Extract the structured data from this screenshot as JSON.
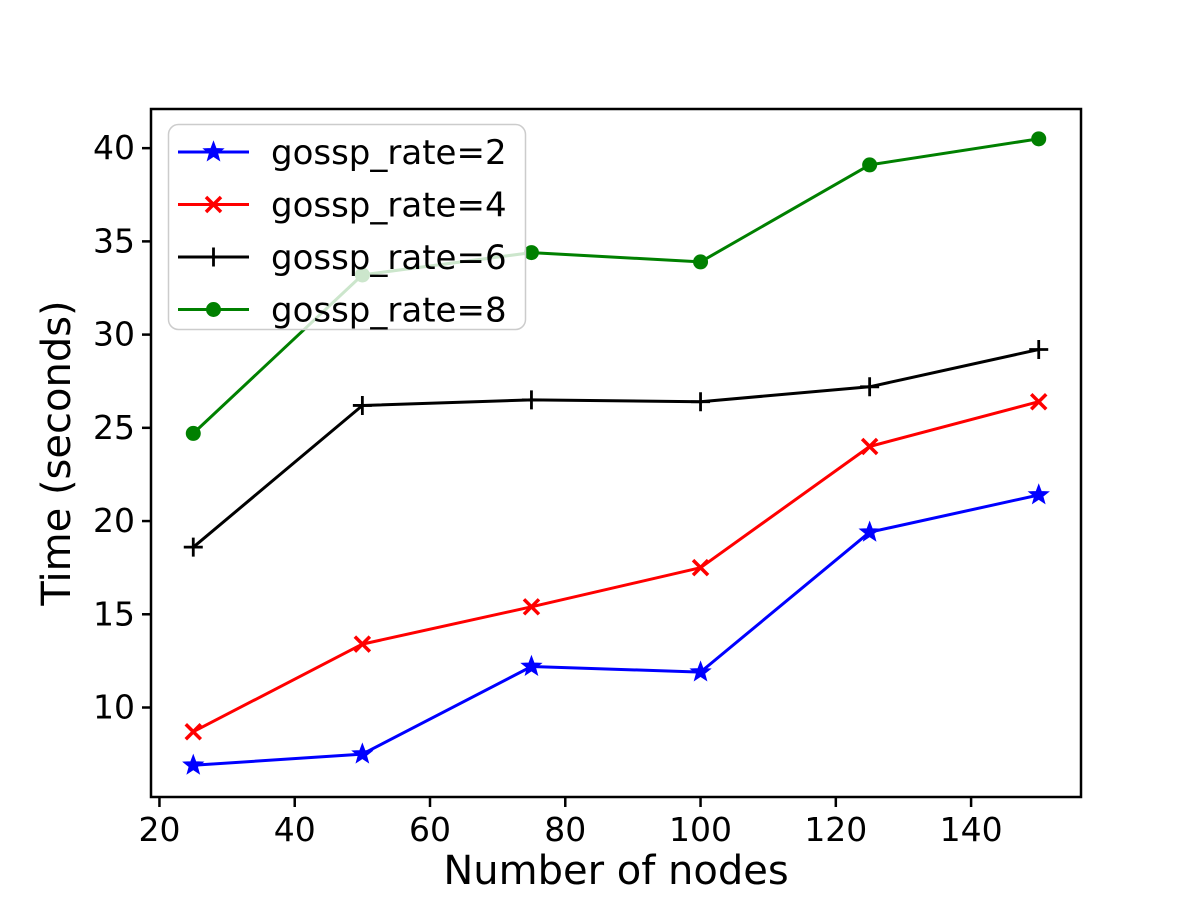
{
  "chart_data": {
    "type": "line",
    "title": "",
    "xlabel": "Number of nodes",
    "ylabel": "Time (seconds)",
    "x": [
      25,
      50,
      75,
      100,
      125,
      150
    ],
    "series": [
      {
        "name": "gossp_rate=2",
        "color": "#0000ff",
        "marker": "star",
        "values": [
          6.9,
          7.5,
          12.2,
          11.9,
          19.4,
          21.4
        ]
      },
      {
        "name": "gossp_rate=4",
        "color": "#ff0000",
        "marker": "x",
        "values": [
          8.7,
          13.4,
          15.4,
          17.5,
          24.0,
          26.4
        ]
      },
      {
        "name": "gossp_rate=6",
        "color": "#000000",
        "marker": "plus",
        "values": [
          18.6,
          26.2,
          26.5,
          26.4,
          27.2,
          29.2
        ]
      },
      {
        "name": "gossp_rate=8",
        "color": "#008000",
        "marker": "circle",
        "values": [
          24.7,
          33.2,
          34.4,
          33.9,
          39.1,
          40.5
        ]
      }
    ],
    "xticks": [
      20,
      40,
      60,
      80,
      100,
      120,
      140
    ],
    "yticks": [
      10,
      15,
      20,
      25,
      30,
      35,
      40
    ],
    "xlim": [
      18.75,
      156.25
    ],
    "ylim": [
      5.2,
      42.1
    ],
    "grid": false,
    "legend": {
      "position": "upper-left",
      "entries": [
        "gossp_rate=2",
        "gossp_rate=4",
        "gossp_rate=6",
        "gossp_rate=8"
      ],
      "facecolor": "rgba(255,255,255,0.8)",
      "edgecolor": "#cccccc"
    },
    "axis_color": "#000000"
  }
}
